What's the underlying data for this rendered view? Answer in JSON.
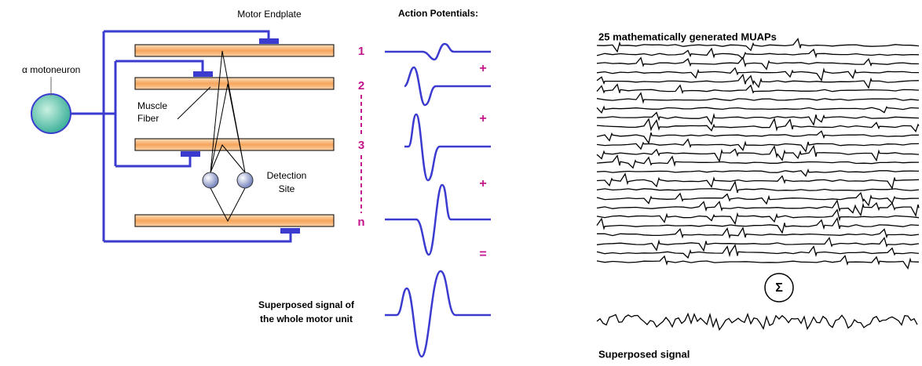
{
  "motor_unit": {
    "motor_endplate": "Motor Endplate",
    "motoneuron": "α motoneuron",
    "muscle_fiber": [
      "Muscle",
      "Fiber"
    ],
    "detection_site": [
      "Detection",
      "Site"
    ],
    "fiber_numbers": [
      "1",
      "2",
      "3",
      "n"
    ]
  },
  "action_potentials": {
    "title": "Action Potentials:",
    "operators": [
      "+",
      "+",
      "+",
      "="
    ],
    "superposed": [
      "Superposed signal of",
      "the whole motor unit"
    ]
  },
  "muaps": {
    "title": "25 mathematically generated MUAPs",
    "sum_symbol": "Σ",
    "superposed": "Superposed signal"
  }
}
